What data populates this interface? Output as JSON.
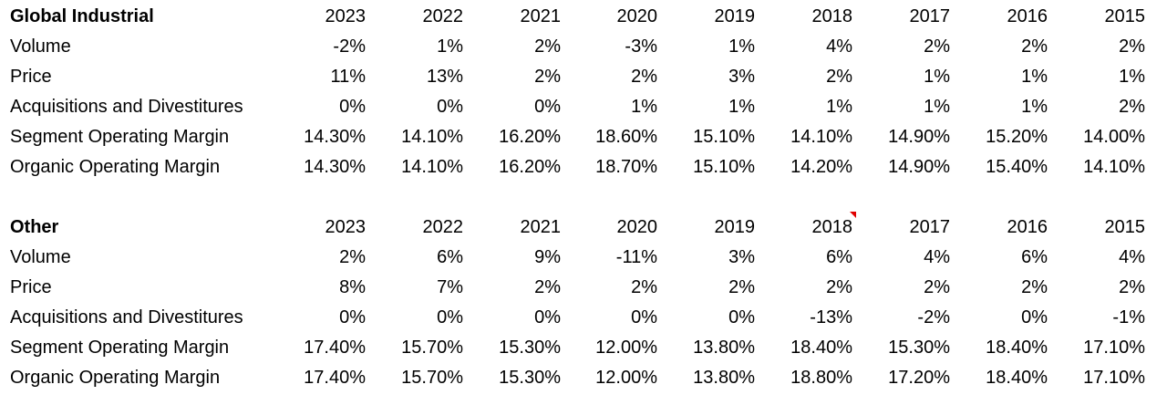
{
  "sections": [
    {
      "title": "Global Industrial",
      "years": [
        "2023",
        "2022",
        "2021",
        "2020",
        "2019",
        "2018",
        "2017",
        "2016",
        "2015"
      ],
      "rows": [
        {
          "label": "Volume",
          "values": [
            "-2%",
            "1%",
            "2%",
            "-3%",
            "1%",
            "4%",
            "2%",
            "2%",
            "2%"
          ]
        },
        {
          "label": "Price",
          "values": [
            "11%",
            "13%",
            "2%",
            "2%",
            "3%",
            "2%",
            "1%",
            "1%",
            "1%"
          ]
        },
        {
          "label": "Acquisitions and Divestitures",
          "values": [
            "0%",
            "0%",
            "0%",
            "1%",
            "1%",
            "1%",
            "1%",
            "1%",
            "2%"
          ]
        },
        {
          "label": "Segment Operating Margin",
          "values": [
            "14.30%",
            "14.10%",
            "16.20%",
            "18.60%",
            "15.10%",
            "14.10%",
            "14.90%",
            "15.20%",
            "14.00%"
          ]
        },
        {
          "label": "Organic Operating Margin",
          "values": [
            "14.30%",
            "14.10%",
            "16.20%",
            "18.70%",
            "15.10%",
            "14.20%",
            "14.90%",
            "15.40%",
            "14.10%"
          ]
        }
      ]
    },
    {
      "title": "Other",
      "years": [
        "2023",
        "2022",
        "2021",
        "2020",
        "2019",
        "2018",
        "2017",
        "2016",
        "2015"
      ],
      "rows": [
        {
          "label": "Volume",
          "values": [
            "2%",
            "6%",
            "9%",
            "-11%",
            "3%",
            "6%",
            "4%",
            "6%",
            "4%"
          ]
        },
        {
          "label": "Price",
          "values": [
            "8%",
            "7%",
            "2%",
            "2%",
            "2%",
            "2%",
            "2%",
            "2%",
            "2%"
          ]
        },
        {
          "label": "Acquisitions and Divestitures",
          "values": [
            "0%",
            "0%",
            "0%",
            "0%",
            "0%",
            "-13%",
            "-2%",
            "0%",
            "-1%"
          ]
        },
        {
          "label": "Segment Operating Margin",
          "values": [
            "17.40%",
            "15.70%",
            "15.30%",
            "12.00%",
            "13.80%",
            "18.40%",
            "15.30%",
            "18.40%",
            "17.10%"
          ]
        },
        {
          "label": "Organic Operating Margin",
          "values": [
            "17.40%",
            "15.70%",
            "15.30%",
            "12.00%",
            "13.80%",
            "18.80%",
            "17.20%",
            "18.40%",
            "17.10%"
          ]
        }
      ]
    }
  ],
  "comment_marker_color": "#e00000"
}
